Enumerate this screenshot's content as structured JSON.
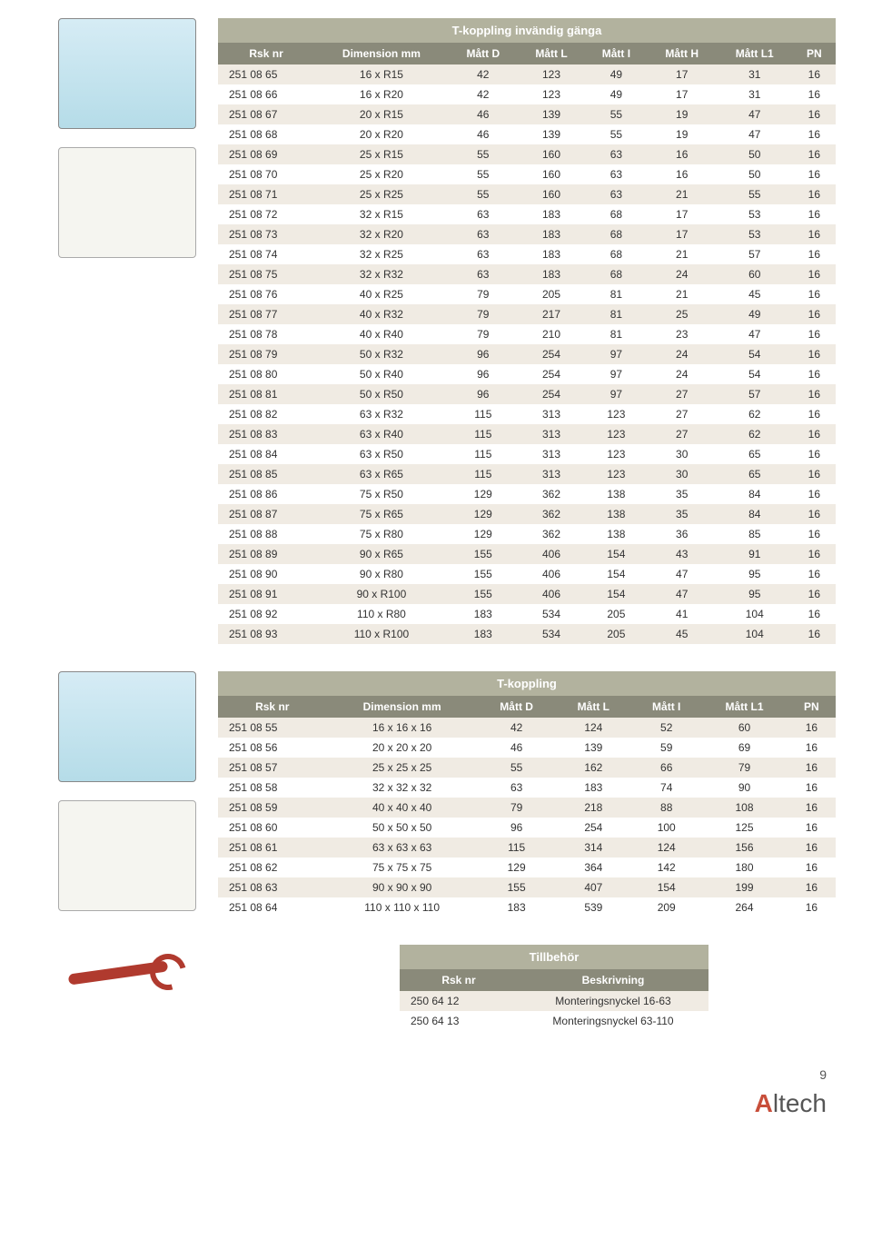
{
  "colors": {
    "header_bg": "#8a8a7a",
    "title_bg": "#b2b29e",
    "row_odd_bg": "#f0ebe3",
    "row_even_bg": "#ffffff",
    "header_text": "#ffffff",
    "cell_text": "#333333"
  },
  "table1": {
    "title": "T-koppling invändig gänga",
    "columns": [
      "Rsk nr",
      "Dimension mm",
      "Mått D",
      "Mått L",
      "Mått I",
      "Mått H",
      "Mått L1",
      "PN"
    ],
    "rows": [
      [
        "251 08 65",
        "16 x R15",
        "42",
        "123",
        "49",
        "17",
        "31",
        "16"
      ],
      [
        "251 08 66",
        "16 x R20",
        "42",
        "123",
        "49",
        "17",
        "31",
        "16"
      ],
      [
        "251 08 67",
        "20 x R15",
        "46",
        "139",
        "55",
        "19",
        "47",
        "16"
      ],
      [
        "251 08 68",
        "20 x R20",
        "46",
        "139",
        "55",
        "19",
        "47",
        "16"
      ],
      [
        "251 08 69",
        "25 x R15",
        "55",
        "160",
        "63",
        "16",
        "50",
        "16"
      ],
      [
        "251 08 70",
        "25 x R20",
        "55",
        "160",
        "63",
        "16",
        "50",
        "16"
      ],
      [
        "251 08 71",
        "25 x R25",
        "55",
        "160",
        "63",
        "21",
        "55",
        "16"
      ],
      [
        "251 08 72",
        "32 x R15",
        "63",
        "183",
        "68",
        "17",
        "53",
        "16"
      ],
      [
        "251 08 73",
        "32 x R20",
        "63",
        "183",
        "68",
        "17",
        "53",
        "16"
      ],
      [
        "251 08 74",
        "32 x R25",
        "63",
        "183",
        "68",
        "21",
        "57",
        "16"
      ],
      [
        "251 08 75",
        "32 x R32",
        "63",
        "183",
        "68",
        "24",
        "60",
        "16"
      ],
      [
        "251 08 76",
        "40 x R25",
        "79",
        "205",
        "81",
        "21",
        "45",
        "16"
      ],
      [
        "251 08 77",
        "40 x R32",
        "79",
        "217",
        "81",
        "25",
        "49",
        "16"
      ],
      [
        "251 08 78",
        "40 x R40",
        "79",
        "210",
        "81",
        "23",
        "47",
        "16"
      ],
      [
        "251 08 79",
        "50 x R32",
        "96",
        "254",
        "97",
        "24",
        "54",
        "16"
      ],
      [
        "251 08 80",
        "50 x R40",
        "96",
        "254",
        "97",
        "24",
        "54",
        "16"
      ],
      [
        "251 08 81",
        "50 x R50",
        "96",
        "254",
        "97",
        "27",
        "57",
        "16"
      ],
      [
        "251 08 82",
        "63 x R32",
        "115",
        "313",
        "123",
        "27",
        "62",
        "16"
      ],
      [
        "251 08 83",
        "63 x R40",
        "115",
        "313",
        "123",
        "27",
        "62",
        "16"
      ],
      [
        "251 08 84",
        "63 x R50",
        "115",
        "313",
        "123",
        "30",
        "65",
        "16"
      ],
      [
        "251 08 85",
        "63 x R65",
        "115",
        "313",
        "123",
        "30",
        "65",
        "16"
      ],
      [
        "251 08 86",
        "75 x R50",
        "129",
        "362",
        "138",
        "35",
        "84",
        "16"
      ],
      [
        "251 08 87",
        "75 x R65",
        "129",
        "362",
        "138",
        "35",
        "84",
        "16"
      ],
      [
        "251 08 88",
        "75 x R80",
        "129",
        "362",
        "138",
        "36",
        "85",
        "16"
      ],
      [
        "251 08 89",
        "90 x R65",
        "155",
        "406",
        "154",
        "43",
        "91",
        "16"
      ],
      [
        "251 08 90",
        "90 x R80",
        "155",
        "406",
        "154",
        "47",
        "95",
        "16"
      ],
      [
        "251 08 91",
        "90 x R100",
        "155",
        "406",
        "154",
        "47",
        "95",
        "16"
      ],
      [
        "251 08 92",
        "110 x R80",
        "183",
        "534",
        "205",
        "41",
        "104",
        "16"
      ],
      [
        "251 08 93",
        "110 x R100",
        "183",
        "534",
        "205",
        "45",
        "104",
        "16"
      ]
    ]
  },
  "table2": {
    "title": "T-koppling",
    "columns": [
      "Rsk nr",
      "Dimension mm",
      "Mått D",
      "Mått L",
      "Mått I",
      "Mått L1",
      "PN"
    ],
    "rows": [
      [
        "251 08 55",
        "16 x 16 x 16",
        "42",
        "124",
        "52",
        "60",
        "16"
      ],
      [
        "251 08 56",
        "20 x 20 x 20",
        "46",
        "139",
        "59",
        "69",
        "16"
      ],
      [
        "251 08 57",
        "25 x 25 x 25",
        "55",
        "162",
        "66",
        "79",
        "16"
      ],
      [
        "251 08 58",
        "32 x 32 x 32",
        "63",
        "183",
        "74",
        "90",
        "16"
      ],
      [
        "251 08 59",
        "40 x 40 x 40",
        "79",
        "218",
        "88",
        "108",
        "16"
      ],
      [
        "251 08 60",
        "50 x 50 x 50",
        "96",
        "254",
        "100",
        "125",
        "16"
      ],
      [
        "251 08 61",
        "63 x 63 x 63",
        "115",
        "314",
        "124",
        "156",
        "16"
      ],
      [
        "251 08 62",
        "75 x 75 x 75",
        "129",
        "364",
        "142",
        "180",
        "16"
      ],
      [
        "251 08 63",
        "90 x 90 x 90",
        "155",
        "407",
        "154",
        "199",
        "16"
      ],
      [
        "251 08 64",
        "110 x 110 x 110",
        "183",
        "539",
        "209",
        "264",
        "16"
      ]
    ]
  },
  "table3": {
    "title": "Tillbehör",
    "columns": [
      "Rsk nr",
      "Beskrivning"
    ],
    "rows": [
      [
        "250 64 12",
        "Monteringsnyckel 16-63"
      ],
      [
        "250 64 13",
        "Monteringsnyckel 63-110"
      ]
    ]
  },
  "page_number": "9",
  "logo_text": "ltech",
  "logo_red": "A"
}
